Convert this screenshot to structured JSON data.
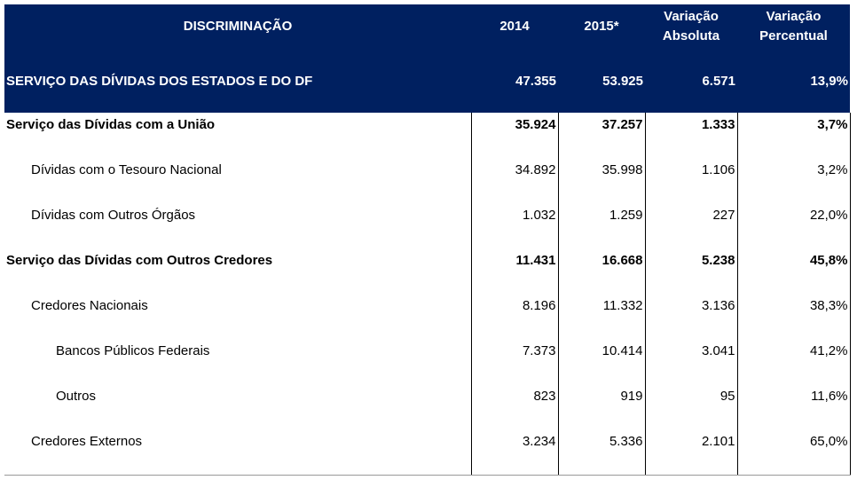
{
  "table": {
    "header": [
      "DISCRIMINAÇÃO",
      "2014",
      "2015*",
      "Variação Absoluta",
      "Variação Percentual"
    ],
    "rows": [
      [
        "SERVIÇO DAS DÍVIDAS DOS ESTADOS E DO DF",
        "47.355",
        "53.925",
        "6.571",
        "13,9%"
      ],
      [
        "Serviço das Dívidas com a União",
        "35.924",
        "37.257",
        "1.333",
        "3,7%"
      ],
      [
        "Dívidas com o Tesouro Nacional",
        "34.892",
        "35.998",
        "1.106",
        "3,2%"
      ],
      [
        "Dívidas com Outros Órgãos",
        "1.032",
        "1.259",
        "227",
        "22,0%"
      ],
      [
        "Serviço das Dívidas com Outros Credores",
        "11.431",
        "16.668",
        "5.238",
        "45,8%"
      ],
      [
        "Credores Nacionais",
        "8.196",
        "11.332",
        "3.136",
        "38,3%"
      ],
      [
        "Bancos Públicos Federais",
        "7.373",
        "10.414",
        "3.041",
        "41,2%"
      ],
      [
        "Outros",
        "823",
        "919",
        "95",
        "11,6%"
      ],
      [
        "Credores Externos",
        "3.234",
        "5.336",
        "2.101",
        "65,0%"
      ]
    ]
  }
}
